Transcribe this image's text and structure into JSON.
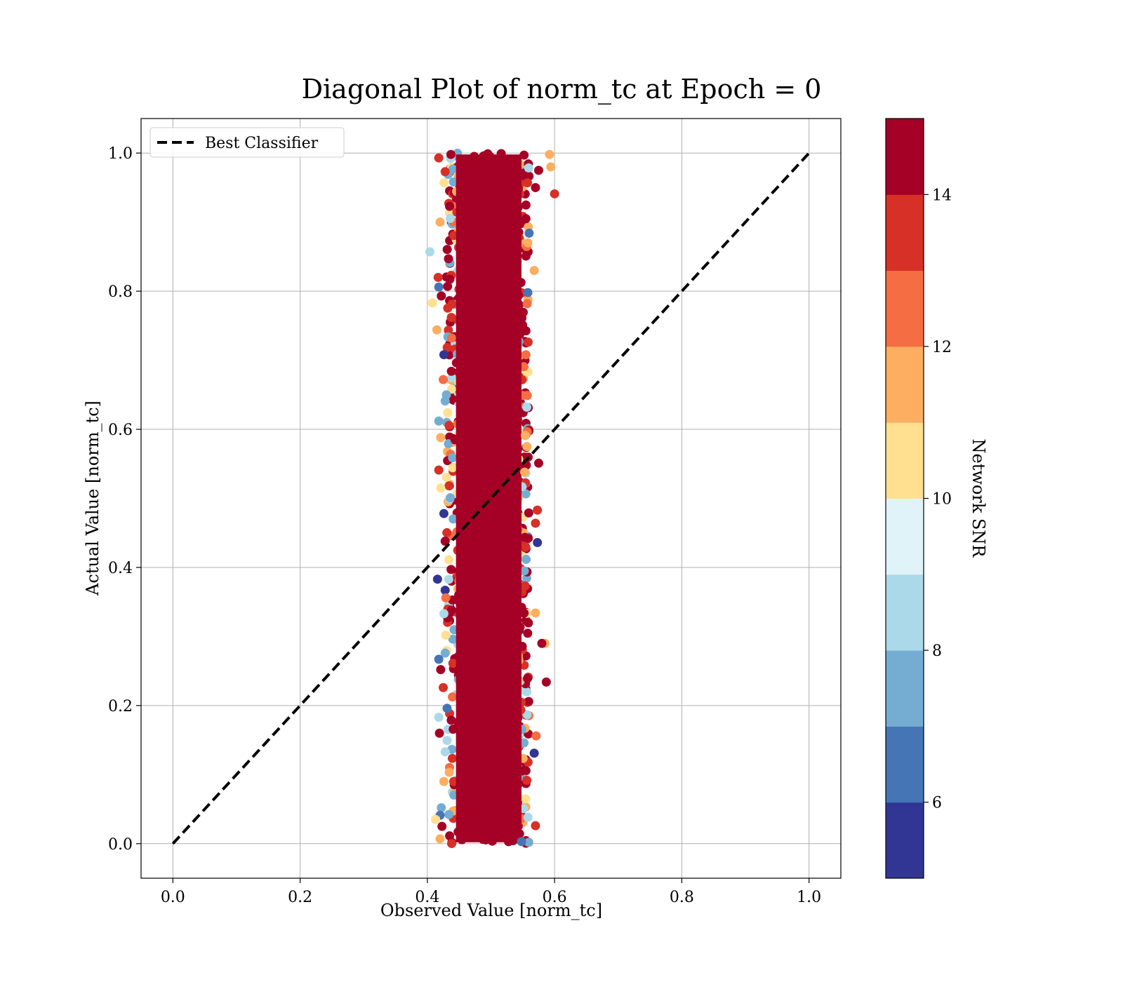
{
  "chart_data": {
    "type": "scatter",
    "title": "Diagonal Plot of norm_tc at Epoch = 0",
    "xlabel": "Observed Value [norm_tc]",
    "ylabel": "Actual Value [norm_tc]",
    "xlim": [
      -0.05,
      1.05
    ],
    "ylim": [
      -0.05,
      1.05
    ],
    "xticks": [
      "0.0",
      "0.2",
      "0.4",
      "0.6",
      "0.8",
      "1.0"
    ],
    "yticks": [
      "0.0",
      "0.2",
      "0.4",
      "0.6",
      "0.8",
      "1.0"
    ],
    "xtick_values": [
      0.0,
      0.2,
      0.4,
      0.6,
      0.8,
      1.0
    ],
    "ytick_values": [
      0.0,
      0.2,
      0.4,
      0.6,
      0.8,
      1.0
    ],
    "grid": true,
    "legend": {
      "placement": "upper-left",
      "entries": [
        "Best Classifier"
      ]
    },
    "reference_line": {
      "name": "Best Classifier",
      "style": "dashed",
      "color": "#000000",
      "x": [
        0.0,
        1.0
      ],
      "y": [
        0.0,
        1.0
      ]
    },
    "scatter_summary": {
      "x_center": 0.5,
      "x_core_range": [
        0.43,
        0.56
      ],
      "x_outlier_range": [
        0.4,
        0.6
      ],
      "y_range": [
        0.0,
        1.0
      ],
      "dominant_color": "#a50026"
    },
    "points": [
      {
        "x": 0.437,
        "y": 0.998,
        "c": "#a50026"
      },
      {
        "x": 0.495,
        "y": 0.999,
        "c": "#a50026"
      },
      {
        "x": 0.552,
        "y": 0.997,
        "c": "#a50026"
      },
      {
        "x": 0.592,
        "y": 0.998,
        "c": "#fdae61"
      },
      {
        "x": 0.594,
        "y": 0.98,
        "c": "#fdae61"
      },
      {
        "x": 0.6,
        "y": 0.941,
        "c": "#d73027"
      },
      {
        "x": 0.575,
        "y": 0.975,
        "c": "#a50026"
      },
      {
        "x": 0.57,
        "y": 0.95,
        "c": "#a50026"
      },
      {
        "x": 0.428,
        "y": 0.973,
        "c": "#d73027"
      },
      {
        "x": 0.418,
        "y": 0.993,
        "c": "#d73027"
      },
      {
        "x": 0.426,
        "y": 0.957,
        "c": "#fee090"
      },
      {
        "x": 0.404,
        "y": 0.857,
        "c": "#abd9e9"
      },
      {
        "x": 0.42,
        "y": 0.9,
        "c": "#fdae61"
      },
      {
        "x": 0.56,
        "y": 0.884,
        "c": "#4575b4"
      },
      {
        "x": 0.558,
        "y": 0.87,
        "c": "#fdae61"
      },
      {
        "x": 0.417,
        "y": 0.82,
        "c": "#d73027"
      },
      {
        "x": 0.418,
        "y": 0.806,
        "c": "#4575b4"
      },
      {
        "x": 0.568,
        "y": 0.83,
        "c": "#fdae61"
      },
      {
        "x": 0.558,
        "y": 0.798,
        "c": "#4575b4"
      },
      {
        "x": 0.408,
        "y": 0.783,
        "c": "#fee090"
      },
      {
        "x": 0.557,
        "y": 0.782,
        "c": "#f46d43"
      },
      {
        "x": 0.422,
        "y": 0.793,
        "c": "#a50026"
      },
      {
        "x": 0.415,
        "y": 0.744,
        "c": "#fdae61"
      },
      {
        "x": 0.426,
        "y": 0.708,
        "c": "#313695"
      },
      {
        "x": 0.555,
        "y": 0.708,
        "c": "#f46d43"
      },
      {
        "x": 0.425,
        "y": 0.672,
        "c": "#f46d43"
      },
      {
        "x": 0.428,
        "y": 0.641,
        "c": "#74add1"
      },
      {
        "x": 0.43,
        "y": 0.65,
        "c": "#74add1"
      },
      {
        "x": 0.557,
        "y": 0.649,
        "c": "#f46d43"
      },
      {
        "x": 0.418,
        "y": 0.612,
        "c": "#74add1"
      },
      {
        "x": 0.432,
        "y": 0.624,
        "c": "#fee090"
      },
      {
        "x": 0.421,
        "y": 0.588,
        "c": "#fdae61"
      },
      {
        "x": 0.554,
        "y": 0.591,
        "c": "#fdae61"
      },
      {
        "x": 0.575,
        "y": 0.551,
        "c": "#a50026"
      },
      {
        "x": 0.418,
        "y": 0.541,
        "c": "#d73027"
      },
      {
        "x": 0.553,
        "y": 0.538,
        "c": "#fdae61"
      },
      {
        "x": 0.421,
        "y": 0.515,
        "c": "#fee090"
      },
      {
        "x": 0.426,
        "y": 0.478,
        "c": "#313695"
      },
      {
        "x": 0.573,
        "y": 0.483,
        "c": "#d73027"
      },
      {
        "x": 0.57,
        "y": 0.464,
        "c": "#d73027"
      },
      {
        "x": 0.573,
        "y": 0.436,
        "c": "#313695"
      },
      {
        "x": 0.428,
        "y": 0.438,
        "c": "#a50026"
      },
      {
        "x": 0.416,
        "y": 0.383,
        "c": "#313695"
      },
      {
        "x": 0.428,
        "y": 0.367,
        "c": "#313695"
      },
      {
        "x": 0.429,
        "y": 0.356,
        "c": "#f46d43"
      },
      {
        "x": 0.57,
        "y": 0.334,
        "c": "#fdae61"
      },
      {
        "x": 0.426,
        "y": 0.333,
        "c": "#abd9e9"
      },
      {
        "x": 0.429,
        "y": 0.302,
        "c": "#fee090"
      },
      {
        "x": 0.585,
        "y": 0.29,
        "c": "#fdae61"
      },
      {
        "x": 0.58,
        "y": 0.29,
        "c": "#a50026"
      },
      {
        "x": 0.418,
        "y": 0.267,
        "c": "#4575b4"
      },
      {
        "x": 0.428,
        "y": 0.276,
        "c": "#74add1"
      },
      {
        "x": 0.421,
        "y": 0.252,
        "c": "#a50026"
      },
      {
        "x": 0.587,
        "y": 0.234,
        "c": "#a50026"
      },
      {
        "x": 0.425,
        "y": 0.226,
        "c": "#d73027"
      },
      {
        "x": 0.431,
        "y": 0.196,
        "c": "#4575b4"
      },
      {
        "x": 0.418,
        "y": 0.183,
        "c": "#abd9e9"
      },
      {
        "x": 0.419,
        "y": 0.16,
        "c": "#a50026"
      },
      {
        "x": 0.571,
        "y": 0.156,
        "c": "#f46d43"
      },
      {
        "x": 0.568,
        "y": 0.131,
        "c": "#313695"
      },
      {
        "x": 0.428,
        "y": 0.133,
        "c": "#abd9e9"
      },
      {
        "x": 0.426,
        "y": 0.09,
        "c": "#fdae61"
      },
      {
        "x": 0.422,
        "y": 0.052,
        "c": "#74add1"
      },
      {
        "x": 0.42,
        "y": 0.041,
        "c": "#4575b4"
      },
      {
        "x": 0.413,
        "y": 0.035,
        "c": "#fee090"
      },
      {
        "x": 0.423,
        "y": 0.025,
        "c": "#a50026"
      },
      {
        "x": 0.57,
        "y": 0.026,
        "c": "#d73027"
      },
      {
        "x": 0.42,
        "y": 0.007,
        "c": "#fdae61"
      },
      {
        "x": 0.548,
        "y": 0.003,
        "c": "#4575b4"
      }
    ],
    "colorbar": {
      "label": "Network SNR",
      "range": [
        5,
        15
      ],
      "ticks": [
        "6",
        "8",
        "10",
        "12",
        "14"
      ],
      "tick_values": [
        6,
        8,
        10,
        12,
        14
      ],
      "bins": [
        {
          "from": 5,
          "to": 6,
          "color": "#313695"
        },
        {
          "from": 6,
          "to": 7,
          "color": "#4575b4"
        },
        {
          "from": 7,
          "to": 8,
          "color": "#74add1"
        },
        {
          "from": 8,
          "to": 9,
          "color": "#abd9e9"
        },
        {
          "from": 9,
          "to": 10,
          "color": "#e0f3f8"
        },
        {
          "from": 10,
          "to": 11,
          "color": "#fee090"
        },
        {
          "from": 11,
          "to": 12,
          "color": "#fdae61"
        },
        {
          "from": 12,
          "to": 13,
          "color": "#f46d43"
        },
        {
          "from": 13,
          "to": 14,
          "color": "#d73027"
        },
        {
          "from": 14,
          "to": 15,
          "color": "#a50026"
        }
      ]
    }
  }
}
